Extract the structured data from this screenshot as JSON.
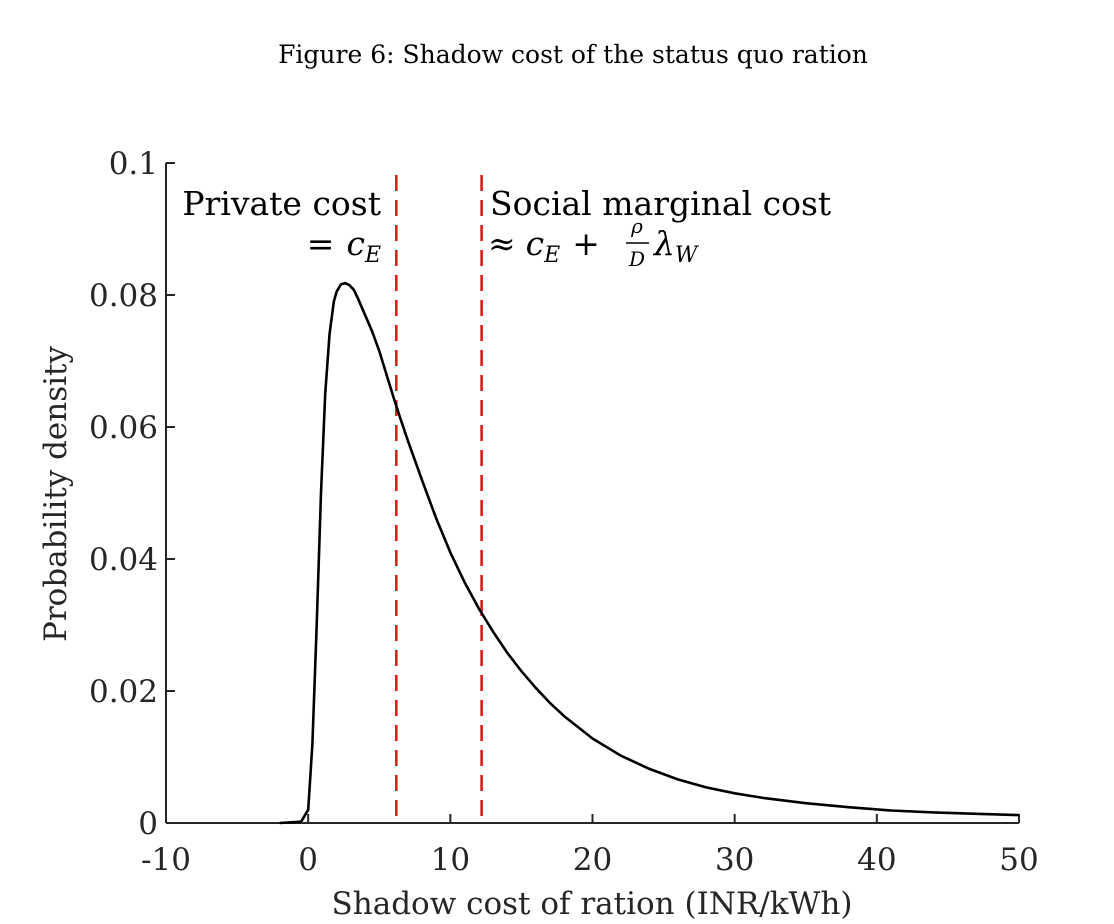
{
  "figure": {
    "caption": "Figure 6: Shadow cost of the status quo ration"
  },
  "chart_data": {
    "type": "line",
    "xlabel": "Shadow cost of ration (INR/kWh)",
    "ylabel": "Probability density",
    "xlim": [
      -10,
      50
    ],
    "ylim": [
      0,
      0.1
    ],
    "xticks": [
      "-10",
      "0",
      "10",
      "20",
      "30",
      "40",
      "50"
    ],
    "yticks": [
      "0",
      "0.02",
      "0.04",
      "0.06",
      "0.08",
      "0.1"
    ],
    "grid": false,
    "series": [
      {
        "color": "#000000",
        "x": [
          -2,
          -0.5,
          0,
          0.3,
          0.6,
          0.9,
          1.2,
          1.5,
          1.8,
          2.0,
          2.3,
          2.6,
          2.9,
          3.2,
          3.5,
          4.0,
          4.5,
          5.0,
          5.5,
          6.0,
          6.5,
          7.0,
          7.5,
          8.0,
          9.0,
          10.0,
          11.0,
          12.0,
          13.0,
          14.0,
          15.0,
          16.0,
          17.0,
          18.0,
          20.0,
          22.0,
          24.0,
          26.0,
          28.0,
          30.0,
          32.0,
          35.0,
          38.0,
          41.0,
          44.0,
          47.0,
          50.0
        ],
        "y": [
          0,
          0.0002,
          0.002,
          0.012,
          0.03,
          0.05,
          0.065,
          0.074,
          0.079,
          0.0805,
          0.0816,
          0.0818,
          0.0815,
          0.0808,
          0.0795,
          0.077,
          0.0745,
          0.0715,
          0.068,
          0.0645,
          0.0612,
          0.058,
          0.055,
          0.052,
          0.0462,
          0.041,
          0.0365,
          0.0325,
          0.029,
          0.0258,
          0.023,
          0.0205,
          0.0182,
          0.0162,
          0.0128,
          0.0102,
          0.0082,
          0.0066,
          0.0054,
          0.0045,
          0.0038,
          0.003,
          0.0024,
          0.0019,
          0.0016,
          0.0014,
          0.0012
        ]
      }
    ],
    "vlines": [
      {
        "x": 6.2,
        "color": "#e41a1c",
        "style": "dashed"
      },
      {
        "x": 12.2,
        "color": "#e41a1c",
        "style": "dashed"
      }
    ],
    "annotations": {
      "private_line1": "Private cost",
      "private_line2_eq": "=",
      "private_line2_var": "c",
      "private_line2_sub": "E",
      "social_line1": "Social marginal cost",
      "social_approx": "≈",
      "social_c": "c",
      "social_c_sub": "E",
      "social_plus": "+",
      "social_frac_num": "ρ",
      "social_frac_den": "D",
      "social_lambda": "λ",
      "social_lambda_sub": "W"
    }
  }
}
